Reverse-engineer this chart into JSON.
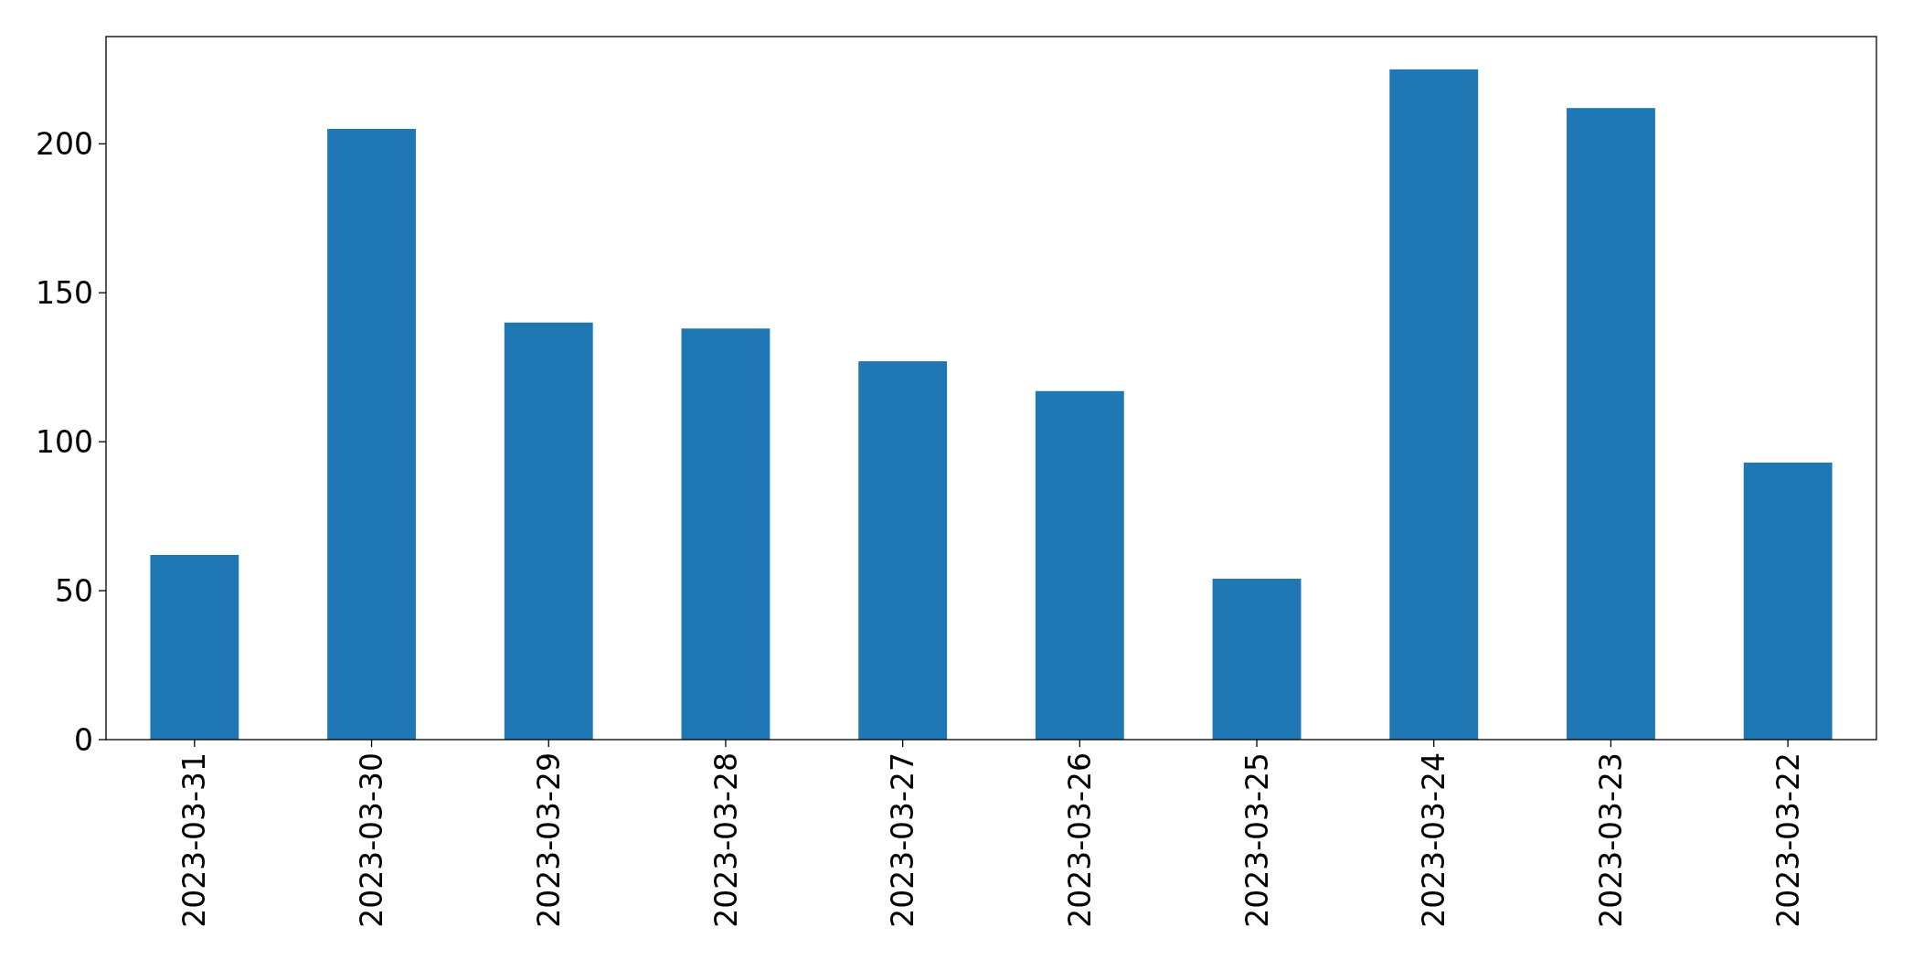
{
  "chart_data": {
    "type": "bar",
    "categories": [
      "2023-03-31",
      "2023-03-30",
      "2023-03-29",
      "2023-03-28",
      "2023-03-27",
      "2023-03-26",
      "2023-03-25",
      "2023-03-24",
      "2023-03-23",
      "2023-03-22"
    ],
    "values": [
      62,
      205,
      140,
      138,
      127,
      117,
      54,
      225,
      212,
      93
    ],
    "color": "#1f77b4",
    "ylim": [
      0,
      236
    ],
    "yticks": [
      0,
      50,
      100,
      150,
      200
    ],
    "grid": false
  }
}
